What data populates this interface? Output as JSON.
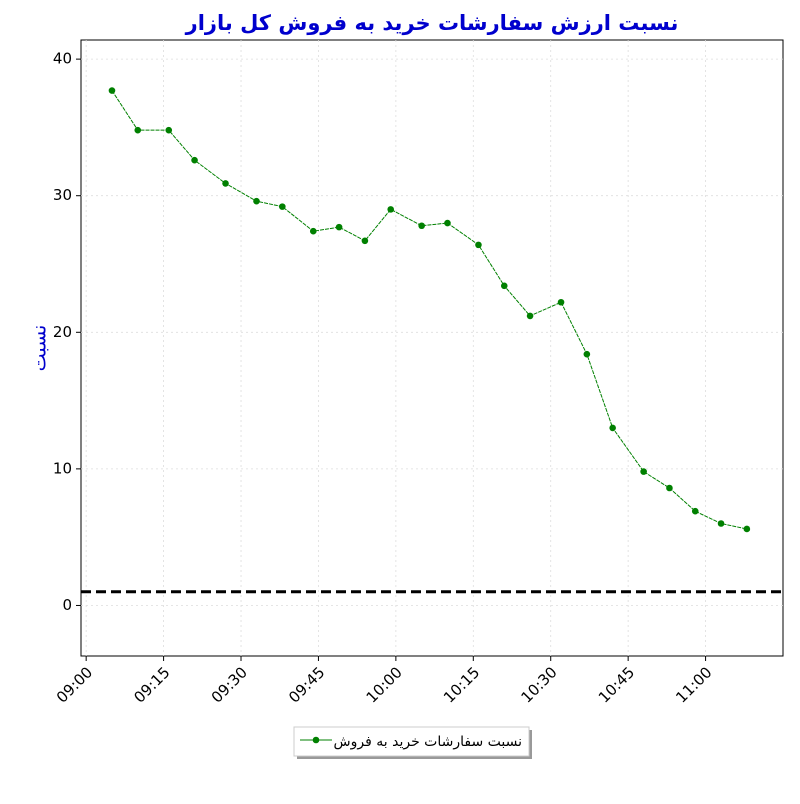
{
  "chart_data": {
    "type": "line",
    "title": "نسبت ارزش سفارشات خرید به فروش کل بازار",
    "y_label": "نسبت",
    "x": [
      "09:05",
      "09:10",
      "09:16",
      "09:21",
      "09:27",
      "09:33",
      "09:38",
      "09:44",
      "09:49",
      "09:54",
      "09:59",
      "10:05",
      "10:10",
      "10:16",
      "10:21",
      "10:26",
      "10:32",
      "10:37",
      "10:42",
      "10:48",
      "10:53",
      "10:58",
      "11:03",
      "11:08"
    ],
    "series": [
      {
        "name": "نسبت سفارشات خرید به فروش",
        "color": "#008000",
        "values": [
          37.7,
          34.8,
          34.8,
          32.6,
          30.9,
          29.6,
          29.2,
          27.4,
          27.7,
          26.7,
          29.0,
          27.8,
          28.0,
          26.4,
          23.4,
          21.2,
          22.2,
          18.4,
          13.0,
          9.8,
          8.6,
          6.9,
          6.0,
          5.6
        ]
      }
    ],
    "reference_line": 1,
    "xlim": [
      "08:59",
      "11:15"
    ],
    "xticks": [
      "09:00",
      "09:15",
      "09:30",
      "09:45",
      "10:00",
      "10:15",
      "10:30",
      "10:45",
      "11:00"
    ],
    "ylim": [
      -3.7,
      41.4
    ],
    "yticks": [
      0,
      10,
      20,
      30,
      40
    ],
    "grid": true,
    "legend": "bottom"
  }
}
